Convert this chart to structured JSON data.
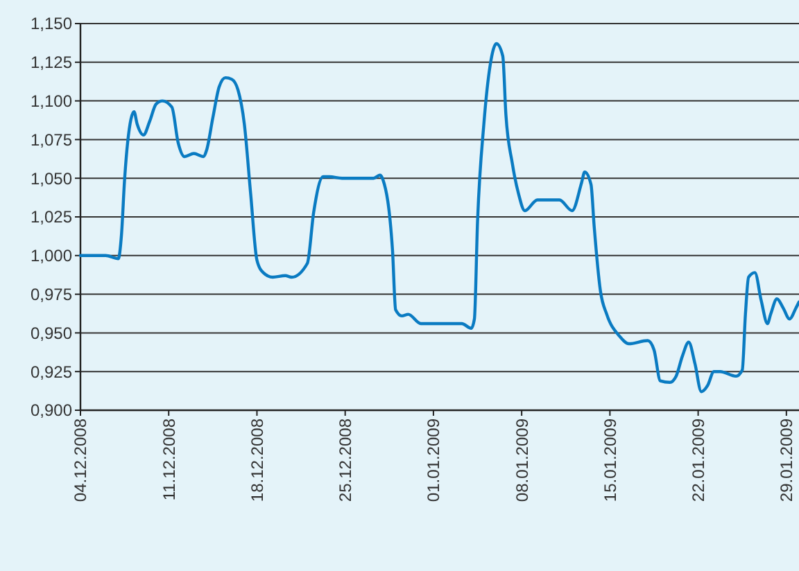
{
  "chart_data": {
    "type": "line",
    "color": "#0a7bc2",
    "x": [
      "2008-12-04",
      "2008-12-06",
      "2008-12-07",
      "2008-12-07T06:00",
      "2008-12-07T12:00",
      "2008-12-08",
      "2008-12-08T06:00",
      "2008-12-08T12:00",
      "2008-12-09",
      "2008-12-09T12:00",
      "2008-12-10",
      "2008-12-10T12:00",
      "2008-12-11T06:00",
      "2008-12-11T18:00",
      "2008-12-12T06:00",
      "2008-12-13",
      "2008-12-13T18:00",
      "2008-12-14",
      "2008-12-14T12:00",
      "2008-12-15",
      "2008-12-15T12:00",
      "2008-12-16",
      "2008-12-16T12:00",
      "2008-12-17",
      "2008-12-17T12:00",
      "2008-12-18",
      "2008-12-18T12:00",
      "2008-12-19T06:00",
      "2008-12-20T06:00",
      "2008-12-20T18:00",
      "2008-12-22",
      "2008-12-22T12:00",
      "2008-12-23T06:00",
      "2008-12-23T18:00",
      "2008-12-24T18:00",
      "2008-12-27T06:00",
      "2008-12-27T18:00",
      "2008-12-28",
      "2008-12-28T18:00",
      "2008-12-29",
      "2008-12-29T12:00",
      "2008-12-30",
      "2008-12-31",
      "2009-01-03T06:00",
      "2009-01-04",
      "2009-01-04T06:00",
      "2009-01-04T12:00",
      "2009-01-05",
      "2009-01-05T12:00",
      "2009-01-06",
      "2009-01-06T12:00",
      "2009-01-06T18:00",
      "2009-01-07T06:00",
      "2009-01-07T18:00",
      "2009-01-08T06:00",
      "2009-01-09T06:00",
      "2009-01-11",
      "2009-01-12",
      "2009-01-12T18:00",
      "2009-01-13",
      "2009-01-13T12:00",
      "2009-01-13T18:00",
      "2009-01-14T06:00",
      "2009-01-14T18:00",
      "2009-01-15T18:00",
      "2009-01-16T12:00",
      "2009-01-18",
      "2009-01-18T12:00",
      "2009-01-19",
      "2009-01-19T18:00",
      "2009-01-20T06:00",
      "2009-01-20T18:00",
      "2009-01-21T06:00",
      "2009-01-21T18:00",
      "2009-01-22T06:00",
      "2009-01-22T18:00",
      "2009-01-23T06:00",
      "2009-01-23T18:00",
      "2009-01-25",
      "2009-01-25T12:00",
      "2009-01-25T18:00",
      "2009-01-26",
      "2009-01-26T12:00",
      "2009-01-27",
      "2009-01-27T12:00",
      "2009-01-27T18:00",
      "2009-01-28T06:00",
      "2009-01-28T18:00",
      "2009-01-29T06:00",
      "2009-01-29T18:00",
      "2009-01-30"
    ],
    "values": [
      1.0,
      1.0,
      0.998,
      1.013,
      1.049,
      1.088,
      1.093,
      1.085,
      1.078,
      1.087,
      1.098,
      1.1,
      1.096,
      1.073,
      1.064,
      1.066,
      1.064,
      1.068,
      1.089,
      1.109,
      1.115,
      1.114,
      1.107,
      1.085,
      1.04,
      0.997,
      0.989,
      0.986,
      0.987,
      0.986,
      0.995,
      1.028,
      1.051,
      1.051,
      1.05,
      1.05,
      1.052,
      1.049,
      1.004,
      0.965,
      0.961,
      0.962,
      0.956,
      0.956,
      0.953,
      0.959,
      1.022,
      1.085,
      1.123,
      1.137,
      1.129,
      1.091,
      1.06,
      1.04,
      1.029,
      1.036,
      1.036,
      1.029,
      1.047,
      1.054,
      1.046,
      1.019,
      0.977,
      0.962,
      0.948,
      0.943,
      0.945,
      0.939,
      0.919,
      0.918,
      0.922,
      0.935,
      0.944,
      0.93,
      0.912,
      0.916,
      0.925,
      0.925,
      0.922,
      0.926,
      0.962,
      0.986,
      0.989,
      0.971,
      0.956,
      0.962,
      0.972,
      0.966,
      0.959,
      0.966,
      0.97
    ],
    "xlim": [
      "2008-12-04",
      "2009-01-30"
    ],
    "xticks": [
      {
        "value": "2008-12-04",
        "label": "04.12.2008"
      },
      {
        "value": "2008-12-11",
        "label": "11.12.2008"
      },
      {
        "value": "2008-12-18",
        "label": "18.12.2008"
      },
      {
        "value": "2008-12-25",
        "label": "25.12.2008"
      },
      {
        "value": "2009-01-01",
        "label": "01.01.2009"
      },
      {
        "value": "2009-01-08",
        "label": "08.01.2009"
      },
      {
        "value": "2009-01-15",
        "label": "15.01.2009"
      },
      {
        "value": "2009-01-22",
        "label": "22.01.2009"
      },
      {
        "value": "2009-01-29",
        "label": "29.01.2009"
      }
    ],
    "ylim": [
      0.9,
      1.15
    ],
    "yticks": [
      {
        "value": 0.9,
        "label": "0,900"
      },
      {
        "value": 0.925,
        "label": "0,925"
      },
      {
        "value": 0.95,
        "label": "0,950"
      },
      {
        "value": 0.975,
        "label": "0,975"
      },
      {
        "value": 1.0,
        "label": "1,000"
      },
      {
        "value": 1.025,
        "label": "1,025"
      },
      {
        "value": 1.05,
        "label": "1,050"
      },
      {
        "value": 1.075,
        "label": "1,075"
      },
      {
        "value": 1.1,
        "label": "1,100"
      },
      {
        "value": 1.125,
        "label": "1,125"
      },
      {
        "value": 1.15,
        "label": "1,150"
      }
    ],
    "grid": "y",
    "marker": "none",
    "line_style": "solid"
  }
}
